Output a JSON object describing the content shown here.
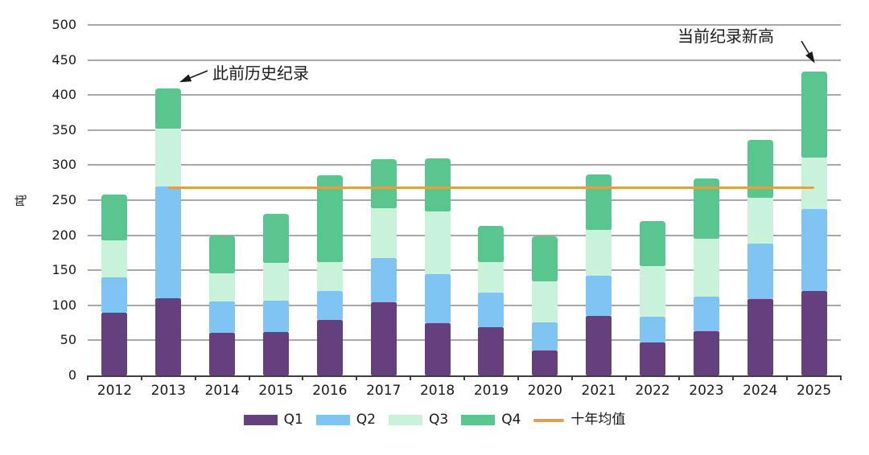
{
  "colors": {
    "q1": "#64417e",
    "q2": "#7fc4f2",
    "q3": "#c8f3da",
    "q4": "#58c68e",
    "average_line": "#d6a450",
    "gridline": "#a8a8a8",
    "axis": "#3f3f3f",
    "text": "#1a1a1a"
  },
  "annotations": {
    "previous_record": "此前历史纪录",
    "current_record": "当前纪录新高"
  },
  "chart_data": {
    "type": "bar",
    "stacked": true,
    "title": "",
    "xlabel": "",
    "ylabel": "吨",
    "ylim": [
      0,
      500
    ],
    "ytick_step": 50,
    "yticks": [
      0,
      50,
      100,
      150,
      200,
      250,
      300,
      350,
      400,
      450,
      500
    ],
    "grid": true,
    "legend_position": "bottom",
    "categories": [
      "2012",
      "2013",
      "2014",
      "2015",
      "2016",
      "2017",
      "2018",
      "2019",
      "2020",
      "2021",
      "2022",
      "2023",
      "2024",
      "2025"
    ],
    "series": [
      {
        "name": "Q1",
        "color": "#64417e",
        "values": [
          90,
          110,
          61,
          62,
          79,
          104,
          75,
          69,
          35,
          85,
          47,
          63,
          109,
          121
        ]
      },
      {
        "name": "Q2",
        "color": "#7fc4f2",
        "values": [
          50,
          159,
          44,
          45,
          41,
          63,
          69,
          49,
          41,
          57,
          37,
          49,
          79,
          116
        ]
      },
      {
        "name": "Q3",
        "color": "#c8f3da",
        "values": [
          53,
          83,
          41,
          54,
          42,
          71,
          90,
          44,
          58,
          66,
          72,
          83,
          65,
          74
        ]
      },
      {
        "name": "Q4",
        "color": "#58c68e",
        "values": [
          65,
          57,
          54,
          69,
          124,
          70,
          76,
          51,
          65,
          79,
          64,
          86,
          83,
          122
        ]
      }
    ],
    "totals": [
      258,
      409,
      200,
      230,
      286,
      308,
      310,
      213,
      199,
      287,
      220,
      281,
      336,
      433
    ],
    "average_line": {
      "label": "十年均值",
      "value": 267,
      "color": "#d6a450",
      "from_index": 1,
      "to_index": 13
    },
    "annotations": [
      {
        "text": "此前历史纪录",
        "target_category": "2013",
        "target_value": 409
      },
      {
        "text": "当前纪录新高",
        "target_category": "2025",
        "target_value": 433
      }
    ]
  }
}
